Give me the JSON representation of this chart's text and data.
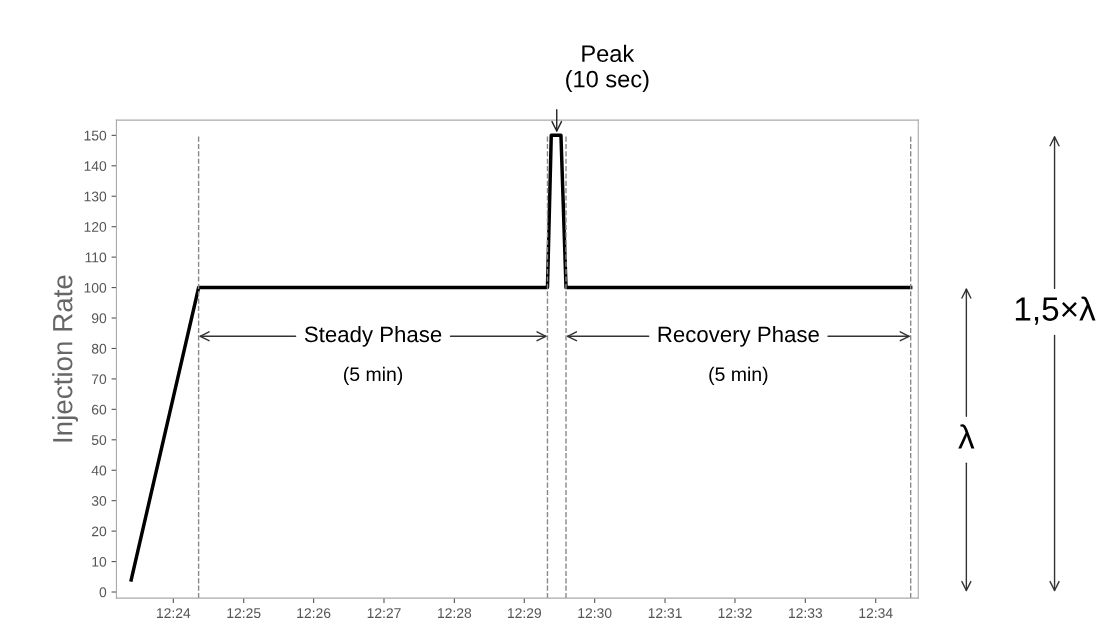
{
  "chart_data": {
    "type": "line",
    "ylabel": "Injection Rate",
    "x": [
      12.39,
      12.406,
      12.4888,
      12.4897,
      12.492,
      12.4932,
      12.575
    ],
    "series": [
      {
        "color": "#000000",
        "values": [
          4,
          100,
          100,
          150,
          150,
          100,
          100
        ]
      }
    ],
    "xlim": [
      12.3865,
      12.5768
    ],
    "xticks": [
      {
        "value": 12.4,
        "label": "12:24"
      },
      {
        "value": 12.4167,
        "label": "12:25"
      },
      {
        "value": 12.4333,
        "label": "12:26"
      },
      {
        "value": 12.45,
        "label": "12:27"
      },
      {
        "value": 12.4667,
        "label": "12:28"
      },
      {
        "value": 12.4833,
        "label": "12:29"
      },
      {
        "value": 12.5,
        "label": "12:30"
      },
      {
        "value": 12.5167,
        "label": "12:31"
      },
      {
        "value": 12.5333,
        "label": "12:32"
      },
      {
        "value": 12.55,
        "label": "12:33"
      },
      {
        "value": 12.5667,
        "label": "12:34"
      }
    ],
    "ylim": [
      -2,
      155
    ],
    "yticks": [
      0,
      10,
      20,
      30,
      40,
      50,
      60,
      70,
      80,
      90,
      100,
      110,
      120,
      130,
      140,
      150
    ],
    "ref_lines": [
      {
        "axis": "x",
        "value": 12.406,
        "color": "#888888",
        "line_style": "dashed"
      },
      {
        "axis": "x",
        "value": 12.4888,
        "color": "#888888",
        "line_style": "dashed"
      },
      {
        "axis": "x",
        "value": 12.4932,
        "color": "#888888",
        "line_style": "dashed"
      },
      {
        "axis": "x",
        "value": 12.575,
        "color": "#888888",
        "line_style": "dashed"
      }
    ],
    "annotations": [
      {
        "text": "Steady Phase",
        "x": 12.406,
        "y": 84
      },
      "(5 min)",
      {
        "text": "Recovery Phase",
        "x": 12.4932,
        "y": 84
      },
      "(5 min)",
      {
        "text": "Peak\n(10 sec)",
        "x": 12.491,
        "y": 150
      },
      "λ",
      "1,5×λ"
    ],
    "grid": false,
    "marker": "none",
    "line_style": "solid"
  }
}
